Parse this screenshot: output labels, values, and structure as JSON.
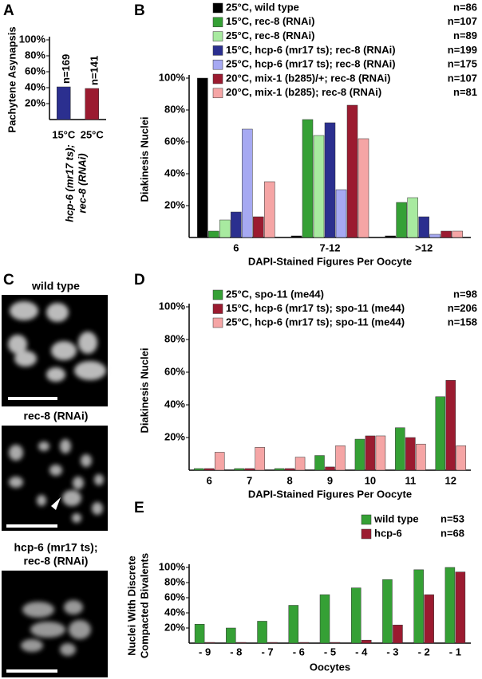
{
  "chart_data": [
    {
      "panel": "A",
      "type": "bar",
      "ylabel": "Pachytene Asynapsis",
      "categories": [
        "15°C",
        "25°C"
      ],
      "values": [
        41,
        39
      ],
      "colors": [
        "#2b2f8f",
        "#9b1b30"
      ],
      "annotations": [
        "n=169",
        "n=141"
      ],
      "xlabel": [
        "hcp-6 (mr17 ts);",
        "rec-8 (RNAi)"
      ],
      "ylim": [
        0,
        100
      ],
      "yticks": [
        {
          "value": 20,
          "label": "20%"
        },
        {
          "value": 40,
          "label": "40%"
        },
        {
          "value": 60,
          "label": "60%"
        },
        {
          "value": 80,
          "label": "80%"
        },
        {
          "value": 100,
          "label": "100%"
        }
      ]
    },
    {
      "panel": "B",
      "type": "bar",
      "ylabel": "Diakinesis Nuclei",
      "xlabel": "DAPI-Stained Figures Per Oocyte",
      "categories": [
        "6",
        "7-12",
        ">12"
      ],
      "series": [
        {
          "name": "25°C, wild type",
          "n": "n=86",
          "color": "#000000",
          "values": [
            100,
            1,
            1
          ]
        },
        {
          "name": "15°C, rec-8 (RNAi)",
          "n": "n=107",
          "color": "#35a035",
          "values": [
            4,
            74,
            22
          ]
        },
        {
          "name": "25°C, rec-8 (RNAi)",
          "n": "n=89",
          "color": "#a8eaa0",
          "values": [
            11,
            64,
            25
          ]
        },
        {
          "name": "15°C, hcp-6 (mr17 ts); rec-8 (RNAi)",
          "n": "n=199",
          "color": "#2b2f8f",
          "values": [
            16,
            72,
            13
          ]
        },
        {
          "name": "25°C, hcp-6 (mr17 ts); rec-8 (RNAi)",
          "n": "n=175",
          "color": "#a6a9f2",
          "values": [
            68,
            30,
            2
          ]
        },
        {
          "name": "20°C, mix-1 (b285)/+; rec-8 (RNAi)",
          "n": "n=107",
          "color": "#9b1b30",
          "values": [
            13,
            83,
            4
          ]
        },
        {
          "name": "20°C, mix-1 (b285); rec-8 (RNAi)",
          "n": "n=81",
          "color": "#f5a5a5",
          "values": [
            35,
            62,
            4
          ]
        }
      ],
      "ylim": [
        0,
        100
      ],
      "yticks": [
        {
          "value": 20,
          "label": "20%"
        },
        {
          "value": 40,
          "label": "40%"
        },
        {
          "value": 60,
          "label": "60%"
        },
        {
          "value": 80,
          "label": "80%"
        },
        {
          "value": 100,
          "label": "100%"
        }
      ]
    },
    {
      "panel": "D",
      "type": "bar",
      "ylabel": "Diakinesis Nuclei",
      "xlabel": "DAPI-Stained Figures Per Oocyte",
      "categories": [
        "6",
        "7",
        "8",
        "9",
        "10",
        "11",
        "12"
      ],
      "series": [
        {
          "name": "25°C, spo-11 (me44)",
          "n": "n=98",
          "color": "#35a035",
          "values": [
            1,
            1,
            1,
            9,
            19,
            26,
            45
          ]
        },
        {
          "name": "15°C, hcp-6 (mr17 ts); spo-11 (me44)",
          "n": "n=206",
          "color": "#9b1b30",
          "values": [
            1,
            1,
            1,
            2,
            21,
            20,
            55
          ]
        },
        {
          "name": "25°C, hcp-6 (mr17 ts); spo-11 (me44)",
          "n": "n=158",
          "color": "#f5a5a5",
          "values": [
            11,
            14,
            8,
            15,
            21,
            16,
            15
          ]
        }
      ],
      "ylim": [
        0,
        100
      ],
      "yticks": [
        {
          "value": 20,
          "label": "20%"
        },
        {
          "value": 40,
          "label": "40%"
        },
        {
          "value": 60,
          "label": "60%"
        },
        {
          "value": 80,
          "label": "80%"
        },
        {
          "value": 100,
          "label": "100%"
        }
      ]
    },
    {
      "panel": "E",
      "type": "bar",
      "ylabel": [
        "Nuclei With Discrete",
        "Compacted Bivalents"
      ],
      "xlabel": "Oocytes",
      "categories": [
        "- 9",
        "- 8",
        "- 7",
        "- 6",
        "- 5",
        "- 4",
        "- 3",
        "- 2",
        "- 1"
      ],
      "series": [
        {
          "name": "wild type",
          "n": "n=53",
          "color": "#35a035",
          "values": [
            25,
            20,
            29,
            50,
            64,
            73,
            84,
            97,
            100
          ]
        },
        {
          "name": "hcp-6",
          "n": "n=68",
          "color": "#9b1b30",
          "values": [
            1,
            1,
            1,
            1,
            1,
            4,
            24,
            64,
            94
          ]
        }
      ],
      "ylim": [
        0,
        100
      ],
      "yticks": [
        {
          "value": 20,
          "label": "20%"
        },
        {
          "value": 40,
          "label": "40%"
        },
        {
          "value": 60,
          "label": "60%"
        },
        {
          "value": 80,
          "label": "80%"
        },
        {
          "value": 100,
          "label": "100%"
        }
      ]
    }
  ],
  "image_panel": {
    "panel": "C",
    "captions": [
      "wild type",
      "rec-8 (RNAi)",
      "hcp-6 (mr17 ts);",
      "rec-8 (RNAi)"
    ]
  }
}
